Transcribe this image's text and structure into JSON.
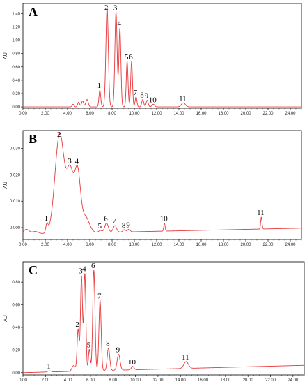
{
  "chart_data": [
    {
      "type": "line",
      "panel": "A",
      "ylabel": "AU",
      "xlim": [
        0,
        25
      ],
      "ylim": [
        -0.02,
        1.55
      ],
      "x_ticks": [
        "0.00",
        "2.00",
        "4.00",
        "6.00",
        "8.00",
        "10.00",
        "12.00",
        "14.00",
        "16.00",
        "18.00",
        "20.00",
        "22.00",
        "24.00"
      ],
      "y_ticks": [
        {
          "value": 0.0,
          "label": "0.00"
        },
        {
          "value": 0.2,
          "label": "0.20"
        },
        {
          "value": 0.4,
          "label": "0.40"
        },
        {
          "value": 0.6,
          "label": "0.60"
        },
        {
          "value": 0.8,
          "label": "0.80"
        },
        {
          "value": 1.0,
          "label": "1.00"
        },
        {
          "value": 1.2,
          "label": "1.20"
        },
        {
          "value": 1.4,
          "label": "1.40"
        }
      ],
      "baseline": {
        "start": 0.0,
        "end": 0.0
      },
      "peaks": [
        {
          "label": "",
          "x": 4.5,
          "y": 0.04,
          "w": 0.08
        },
        {
          "label": "",
          "x": 5.0,
          "y": 0.07,
          "w": 0.09
        },
        {
          "label": "",
          "x": 5.35,
          "y": 0.09,
          "w": 0.09
        },
        {
          "label": "",
          "x": 5.75,
          "y": 0.11,
          "w": 0.11
        },
        {
          "label": "1",
          "x": 6.9,
          "y": 0.25,
          "w": 0.08
        },
        {
          "label": "2",
          "x": 7.55,
          "y": 1.49,
          "w": 0.11
        },
        {
          "label": "3",
          "x": 8.35,
          "y": 1.42,
          "w": 0.1
        },
        {
          "label": "4",
          "x": 8.7,
          "y": 1.18,
          "w": 0.09
        },
        {
          "label": "5",
          "x": 9.35,
          "y": 0.68,
          "w": 0.08
        },
        {
          "label": "6",
          "x": 9.75,
          "y": 0.68,
          "w": 0.08
        },
        {
          "label": "7",
          "x": 10.15,
          "y": 0.15,
          "w": 0.08
        },
        {
          "label": "8",
          "x": 10.75,
          "y": 0.11,
          "w": 0.09
        },
        {
          "label": "9",
          "x": 11.15,
          "y": 0.1,
          "w": 0.09
        },
        {
          "label": "10",
          "x": 11.7,
          "y": 0.04,
          "w": 0.12
        },
        {
          "label": "11",
          "x": 14.4,
          "y": 0.06,
          "w": 0.18
        }
      ]
    },
    {
      "type": "line",
      "panel": "B",
      "ylabel": "AU",
      "xlim": [
        0,
        25
      ],
      "ylim": [
        -0.0045,
        0.0368
      ],
      "x_ticks": [
        "0.00",
        "2.00",
        "4.00",
        "6.00",
        "8.00",
        "10.00",
        "12.00",
        "14.00",
        "16.00",
        "18.00",
        "20.00",
        "22.00",
        "24.00"
      ],
      "y_ticks": [
        {
          "value": 0.0,
          "label": "0.000"
        },
        {
          "value": 0.01,
          "label": "0.010"
        },
        {
          "value": 0.02,
          "label": "0.020"
        },
        {
          "value": 0.03,
          "label": "0.030"
        }
      ],
      "baseline": {
        "start": -0.0025,
        "end": -0.0002
      },
      "peaks": [
        {
          "label": "",
          "x": 0.3,
          "y": 0.0018,
          "w": 0.25
        },
        {
          "label": "",
          "x": 1.1,
          "y": 0.0009,
          "w": 0.3
        },
        {
          "label": "1",
          "x": 2.15,
          "y": 0.0033,
          "w": 0.1
        },
        {
          "label": "2",
          "x": 3.3,
          "y": 0.0378,
          "w": 0.42
        },
        {
          "label": "3",
          "x": 4.25,
          "y": 0.0218,
          "w": 0.3
        },
        {
          "label": "4",
          "x": 4.9,
          "y": 0.0225,
          "w": 0.26
        },
        {
          "label": "",
          "x": 5.6,
          "y": 0.006,
          "w": 0.35
        },
        {
          "label": "5",
          "x": 6.95,
          "y": 0.0008,
          "w": 0.15
        },
        {
          "label": "6",
          "x": 7.5,
          "y": 0.0035,
          "w": 0.16
        },
        {
          "label": "7",
          "x": 8.25,
          "y": 0.0025,
          "w": 0.15
        },
        {
          "label": "8",
          "x": 9.1,
          "y": 0.0009,
          "w": 0.12
        },
        {
          "label": "9",
          "x": 9.5,
          "y": 0.001,
          "w": 0.12
        },
        {
          "label": "10",
          "x": 12.7,
          "y": 0.003,
          "w": 0.06
        },
        {
          "label": "11",
          "x": 21.4,
          "y": 0.0045,
          "w": 0.06
        }
      ]
    },
    {
      "type": "line",
      "panel": "C",
      "ylabel": "AU",
      "xlim": [
        0,
        25
      ],
      "ylim": [
        -0.02,
        0.98
      ],
      "x_ticks": [
        "0.00",
        "2.00",
        "4.00",
        "6.00",
        "8.00",
        "10.00",
        "12.00",
        "14.00",
        "16.00",
        "18.00",
        "20.00",
        "22.00",
        "24.00"
      ],
      "y_ticks": [
        {
          "value": 0.0,
          "label": "0.00"
        },
        {
          "value": 0.2,
          "label": "0.20"
        },
        {
          "value": 0.4,
          "label": "0.40"
        },
        {
          "value": 0.6,
          "label": "0.60"
        },
        {
          "value": 0.8,
          "label": "0.80"
        }
      ],
      "baseline": {
        "start": 0.0,
        "end": 0.065
      },
      "peaks": [
        {
          "label": "1",
          "x": 2.35,
          "y": 0.01,
          "w": 0.15
        },
        {
          "label": "",
          "x": 4.5,
          "y": 0.05,
          "w": 0.15
        },
        {
          "label": "2",
          "x": 4.9,
          "y": 0.37,
          "w": 0.09
        },
        {
          "label": "3",
          "x": 5.2,
          "y": 0.84,
          "w": 0.09
        },
        {
          "label": "4",
          "x": 5.5,
          "y": 0.86,
          "w": 0.09
        },
        {
          "label": "5",
          "x": 5.9,
          "y": 0.19,
          "w": 0.08
        },
        {
          "label": "6",
          "x": 6.3,
          "y": 0.89,
          "w": 0.1
        },
        {
          "label": "7",
          "x": 6.85,
          "y": 0.62,
          "w": 0.1
        },
        {
          "label": "8",
          "x": 7.6,
          "y": 0.2,
          "w": 0.11
        },
        {
          "label": "9",
          "x": 8.5,
          "y": 0.14,
          "w": 0.13
        },
        {
          "label": "10",
          "x": 9.75,
          "y": 0.03,
          "w": 0.12
        },
        {
          "label": "11",
          "x": 14.5,
          "y": 0.06,
          "w": 0.2
        }
      ]
    }
  ],
  "colors": {
    "trace": "#e8373a",
    "axis": "#000000",
    "tick_text": "#222222"
  }
}
